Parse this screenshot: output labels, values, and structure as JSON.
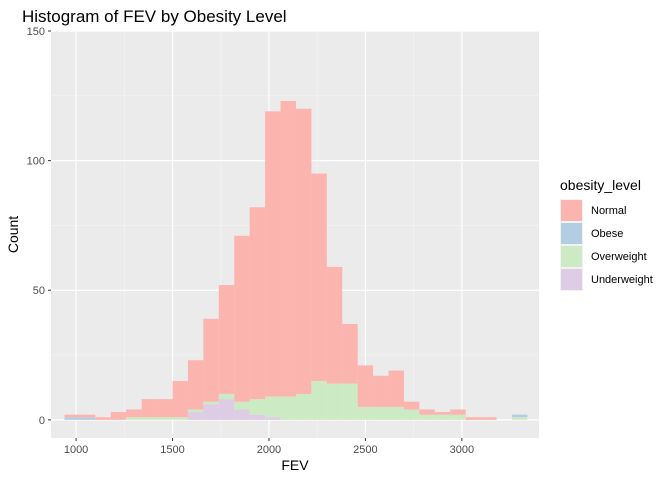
{
  "chart_data": {
    "type": "bar",
    "subtype": "stacked-histogram",
    "title": "Histogram of FEV by Obesity Level",
    "xlabel": "FEV",
    "ylabel": "Count",
    "xlim": [
      870,
      3400
    ],
    "ylim": [
      -7,
      150
    ],
    "xticks": [
      1000,
      1500,
      2000,
      2500,
      3000
    ],
    "yticks": [
      0,
      50,
      100,
      150
    ],
    "grid": true,
    "legend": {
      "title": "obesity_level",
      "position": "right"
    },
    "bin_starts": [
      940,
      1020,
      1100,
      1180,
      1260,
      1340,
      1420,
      1500,
      1580,
      1660,
      1740,
      1820,
      1900,
      1980,
      2060,
      2140,
      2220,
      2300,
      2380,
      2460,
      2540,
      2620,
      2700,
      2780,
      2860,
      2940,
      3020,
      3100,
      3180,
      3260
    ],
    "bin_width": 80,
    "series": [
      {
        "name": "Normal",
        "color": "#FBB4AE",
        "values": [
          1,
          1,
          1,
          3,
          3,
          7,
          7,
          14,
          19,
          32,
          42,
          64,
          74,
          110,
          114,
          110,
          80,
          45,
          23,
          16,
          12,
          14,
          3,
          2,
          1,
          2,
          1,
          1,
          0,
          0
        ]
      },
      {
        "name": "Obese",
        "color": "#B3CDE3",
        "values": [
          1,
          1,
          0,
          0,
          0,
          0,
          0,
          0,
          0,
          0,
          0,
          0,
          0,
          0,
          0,
          0,
          0,
          0,
          0,
          0,
          0,
          0,
          0,
          0,
          0,
          0,
          0,
          0,
          0,
          1
        ]
      },
      {
        "name": "Overweight",
        "color": "#CCEBC5",
        "values": [
          0,
          0,
          0,
          0,
          1,
          1,
          1,
          1,
          1,
          1,
          2,
          3,
          6,
          8,
          9,
          10,
          15,
          14,
          14,
          5,
          5,
          5,
          4,
          2,
          2,
          2,
          0,
          0,
          0,
          1
        ]
      },
      {
        "name": "Underweight",
        "color": "#DECBE4",
        "values": [
          0,
          0,
          0,
          0,
          0,
          0,
          0,
          0,
          3,
          6,
          8,
          4,
          2,
          1,
          0,
          0,
          0,
          0,
          0,
          0,
          0,
          0,
          0,
          0,
          0,
          0,
          0,
          0,
          0,
          0
        ]
      }
    ]
  }
}
